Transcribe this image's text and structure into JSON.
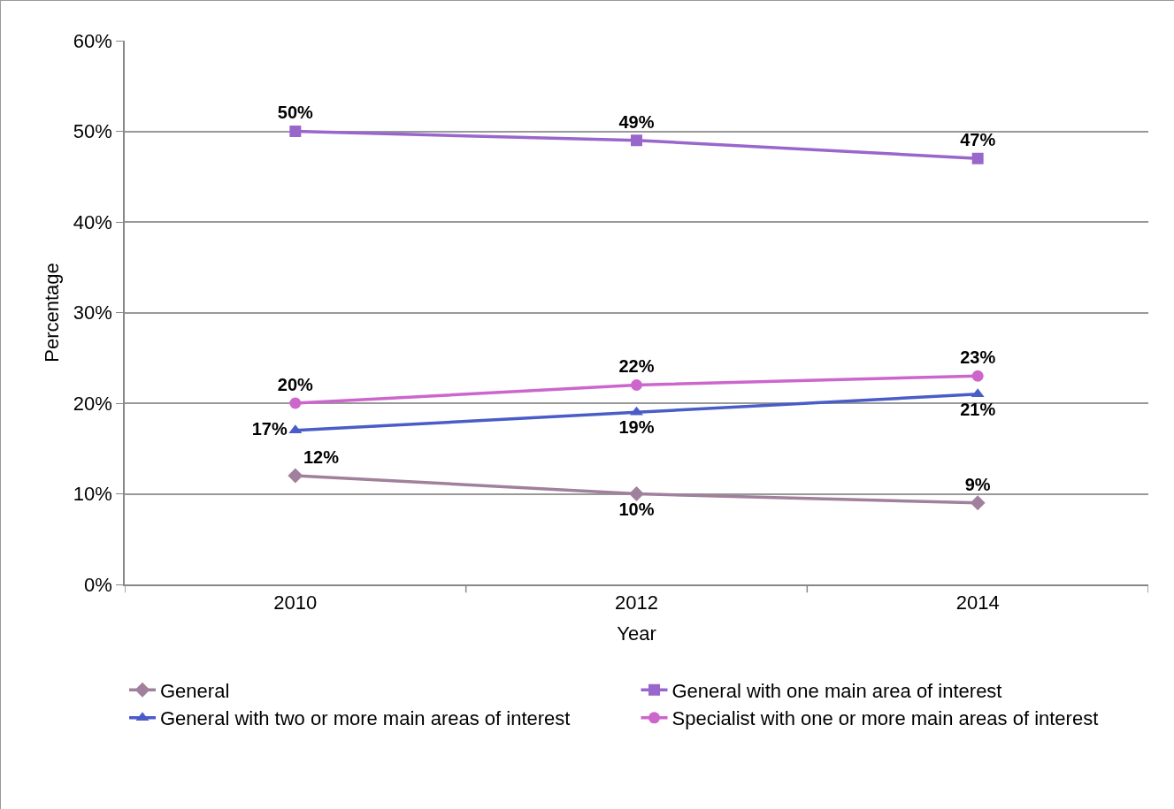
{
  "chart_data": {
    "type": "line",
    "xlabel": "Year",
    "ylabel": "Percentage",
    "categories": [
      "2010",
      "2012",
      "2014"
    ],
    "ylim": [
      0,
      60
    ],
    "yticks": [
      {
        "value": 0,
        "label": "0%"
      },
      {
        "value": 10,
        "label": "10%"
      },
      {
        "value": 20,
        "label": "20%"
      },
      {
        "value": 30,
        "label": "30%"
      },
      {
        "value": 40,
        "label": "40%"
      },
      {
        "value": 50,
        "label": "50%"
      },
      {
        "value": 60,
        "label": "60%"
      }
    ],
    "grid": "y",
    "legend": "bottom",
    "line_style": "solid",
    "series": [
      {
        "name": "General",
        "color": "#a0809c",
        "marker": "diamond",
        "values": [
          12,
          10,
          9
        ],
        "value_labels": [
          "12%",
          "10%",
          "9%"
        ]
      },
      {
        "name": "General with one main area of interest",
        "color": "#9966cc",
        "marker": "square",
        "values": [
          50,
          49,
          47
        ],
        "value_labels": [
          "50%",
          "49%",
          "47%"
        ]
      },
      {
        "name": "General with two or more main areas of interest",
        "color": "#4a5cc8",
        "marker": "triangle",
        "values": [
          17,
          19,
          21
        ],
        "value_labels": [
          "17%",
          "19%",
          "21%"
        ]
      },
      {
        "name": "Specialist with one or more main areas of interest",
        "color": "#cc66cc",
        "marker": "circle",
        "values": [
          20,
          22,
          23
        ],
        "value_labels": [
          "20%",
          "22%",
          "23%"
        ]
      }
    ]
  }
}
